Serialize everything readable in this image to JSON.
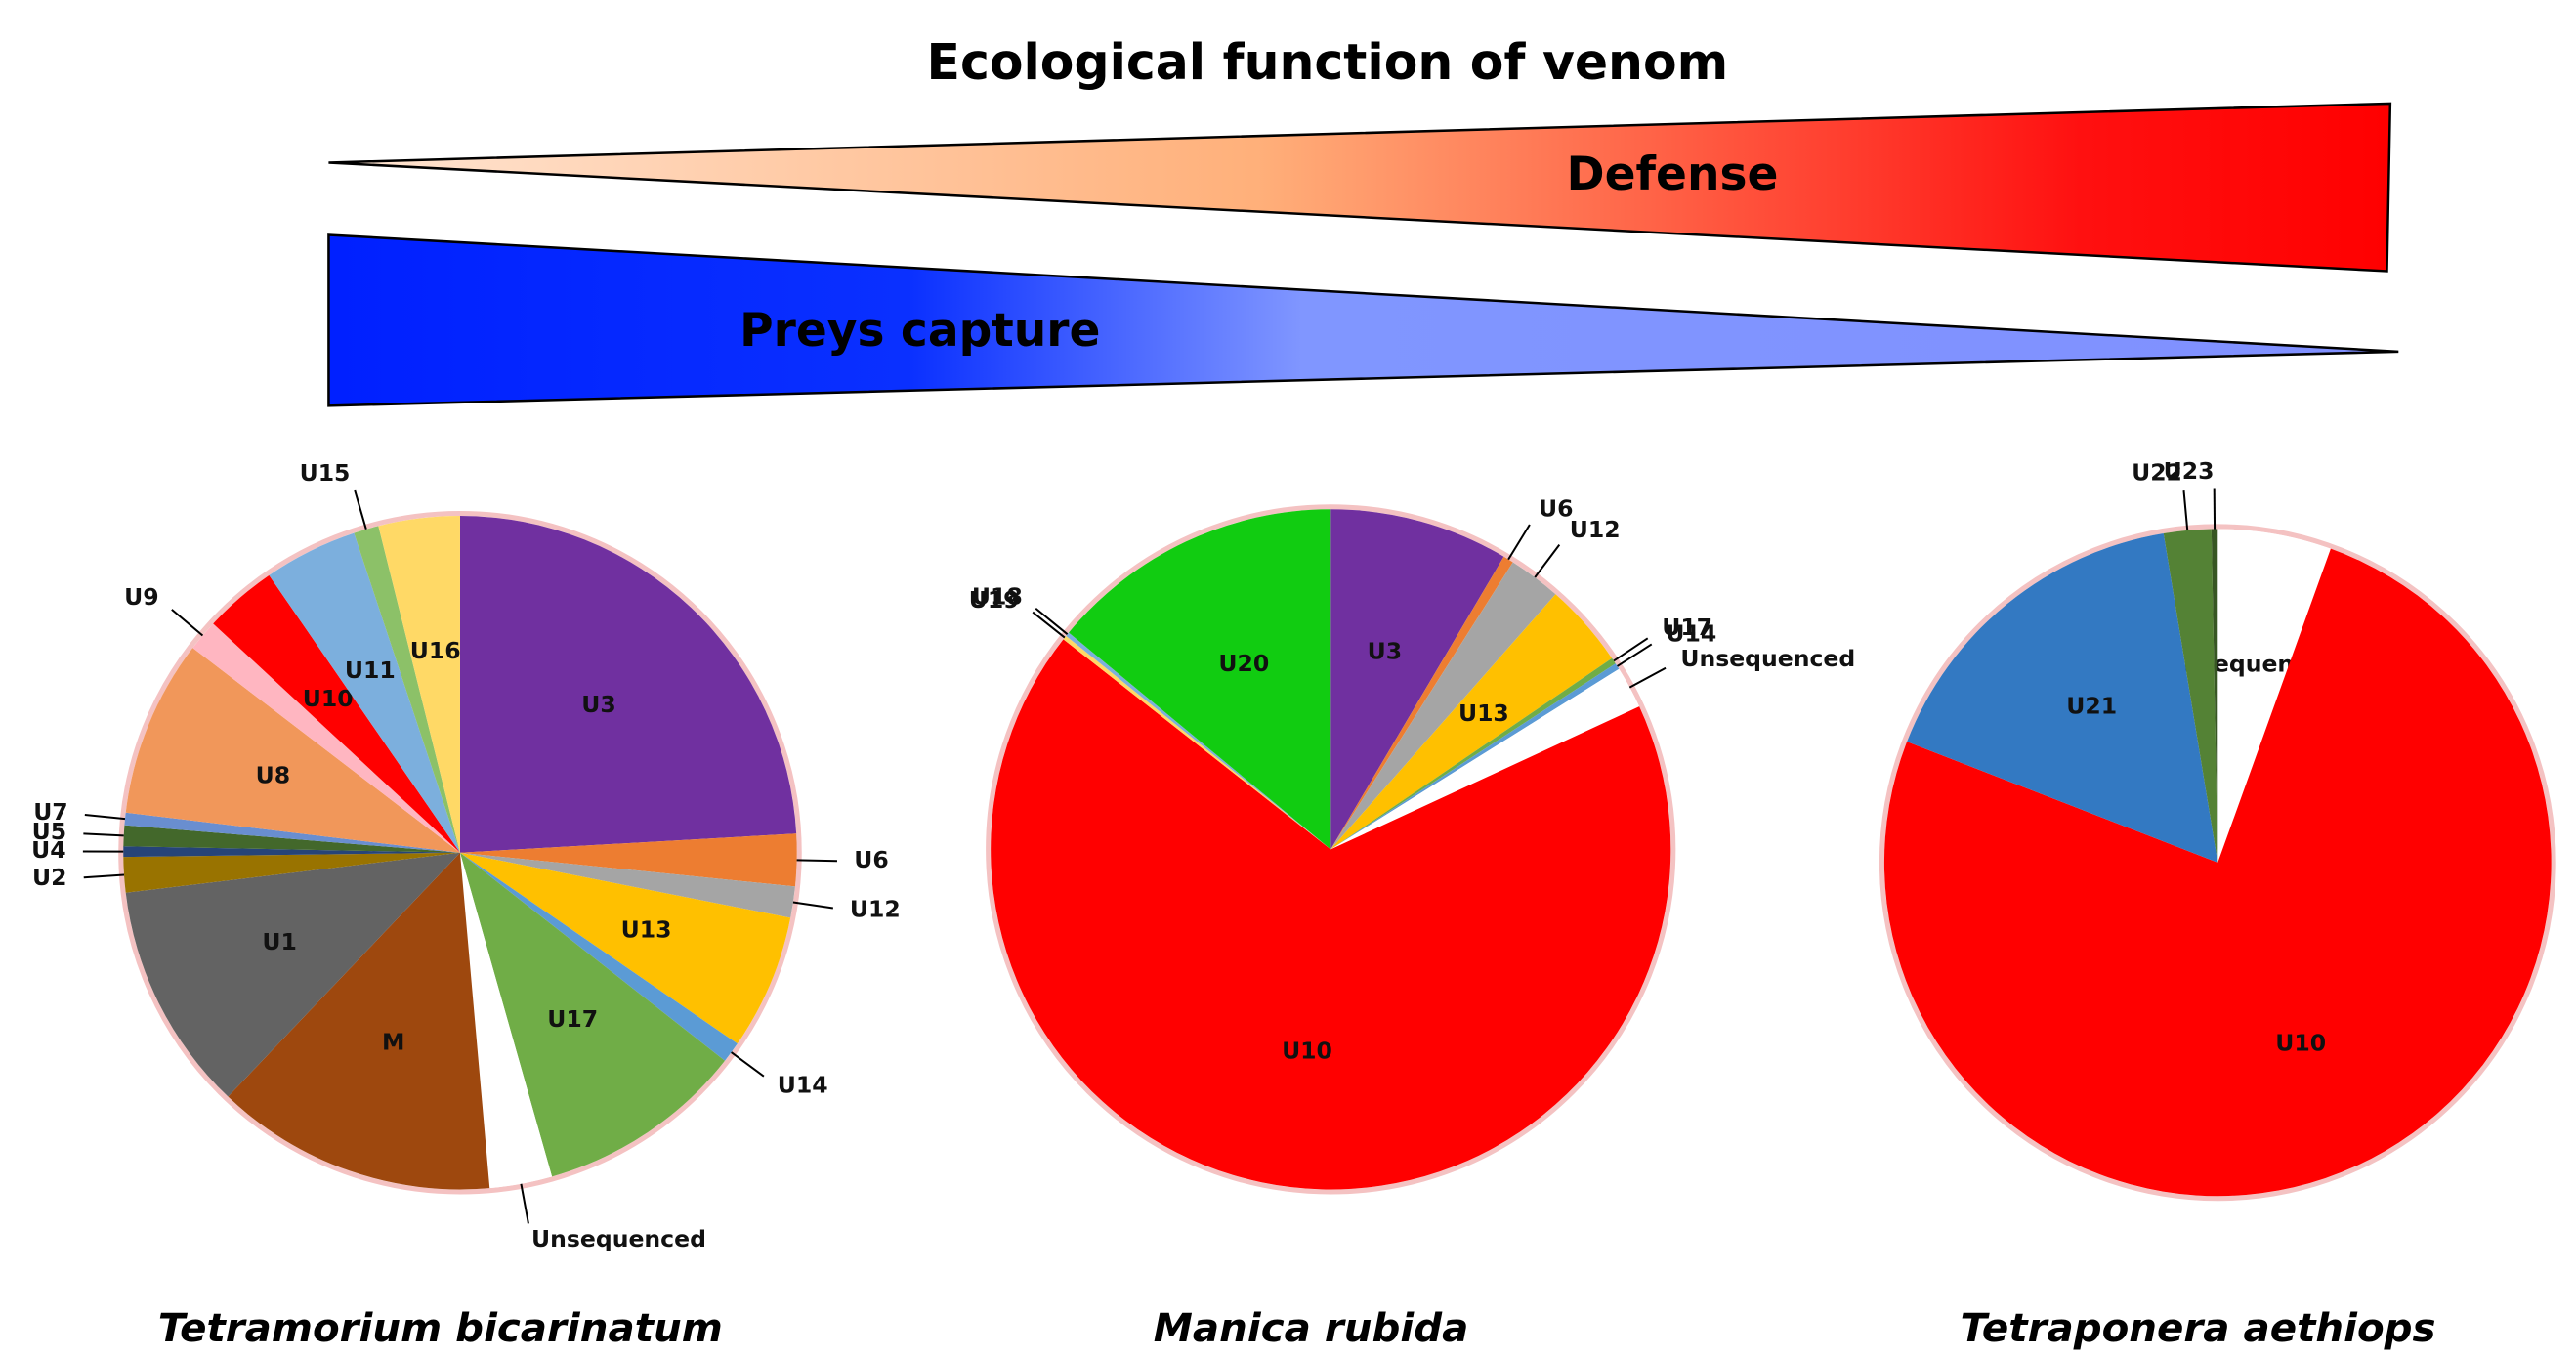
{
  "gradient": {
    "title": "Ecological function of venom",
    "defense": "Defense",
    "prey_capture": "Preys capture"
  },
  "chart_data": [
    {
      "type": "pie",
      "title": "Tetramorium bicarinatum",
      "categories": [
        "U3",
        "U6",
        "U12",
        "U13",
        "U14",
        "U17",
        "Unsequenced",
        "M",
        "U1",
        "U2",
        "U4",
        "U5",
        "U7",
        "U8",
        "U9",
        "U10",
        "U11",
        "U15",
        "U16"
      ],
      "values": [
        24.1,
        2.5,
        1.5,
        6.5,
        1,
        10,
        3,
        13.5,
        11,
        1.7,
        0.5,
        1,
        0.6,
        8.5,
        1.5,
        3.5,
        4.5,
        1.2,
        3.9
      ],
      "colors": [
        "#7030a0",
        "#ed7d31",
        "#a5a5a5",
        "#ffc000",
        "#5b9bd5",
        "#70ad47",
        "#ffffff",
        "#9e480e",
        "#636363",
        "#997300",
        "#264478",
        "#43682b",
        "#698ed0",
        "#f1975a",
        "#ffb6c1",
        "#ff0000",
        "#7cafdd",
        "#8cc168",
        "#ffd966"
      ]
    },
    {
      "type": "pie",
      "title": "Manica rubida",
      "categories": [
        "U3",
        "U6",
        "U12",
        "U13",
        "U17",
        "U14",
        "Unsequenced",
        "U10",
        "U19",
        "U18",
        "U20"
      ],
      "values": [
        8.5,
        0.5,
        2.5,
        4,
        0.3,
        0.3,
        2,
        67.5,
        0.2,
        0.2,
        14
      ],
      "colors": [
        "#7030a0",
        "#ed7d31",
        "#a5a5a5",
        "#ffc000",
        "#70ad47",
        "#5b9bd5",
        "#ffffff",
        "#ff0000",
        "#ffd966",
        "#7cafdd",
        "#11cc11"
      ]
    },
    {
      "type": "pie",
      "title": "Tetraponera aethiops",
      "categories": [
        "Unsequenced",
        "U10",
        "U21",
        "U22",
        "U23"
      ],
      "values": [
        5.5,
        75.4,
        16.5,
        2.3,
        0.3
      ],
      "colors": [
        "#ffffff",
        "#ff0000",
        "#3379c2",
        "#548235",
        "#375623"
      ]
    }
  ]
}
